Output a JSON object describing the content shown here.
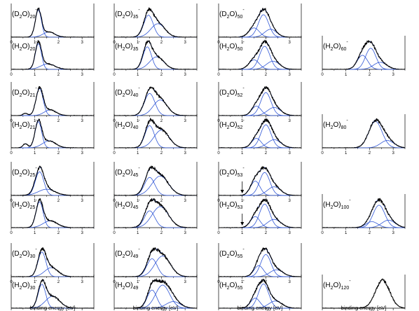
{
  "chart_data": {
    "type": "line",
    "x_range": [
      0,
      3.5
    ],
    "x_ticks": [
      "0",
      "1",
      "2",
      "3"
    ],
    "xlabel": "binding energy [eV]",
    "colors": {
      "spectrum": "#000000",
      "fit": "#2f56d6"
    },
    "columns": [
      {
        "panels": [
          {
            "label": [
              "(D",
              "2",
              "O)",
              "20",
              "-"
            ],
            "components": [
              {
                "c": 1.15,
                "w": 0.13,
                "a": 0.95
              },
              {
                "c": 1.6,
                "w": 0.25,
                "a": 0.18
              }
            ]
          },
          {
            "label": [
              "(H",
              "2",
              "O)",
              "20",
              "-"
            ],
            "components": [
              {
                "c": 1.15,
                "w": 0.13,
                "a": 0.95
              },
              {
                "c": 1.55,
                "w": 0.3,
                "a": 0.2
              }
            ]
          },
          {
            "label": [
              "(D",
              "2",
              "O)",
              "21",
              "-"
            ],
            "components": [
              {
                "c": 1.2,
                "w": 0.15,
                "a": 0.95
              },
              {
                "c": 1.65,
                "w": 0.25,
                "a": 0.2
              }
            ],
            "shoulder": {
              "c": 0.6,
              "w": 0.1,
              "a": 0.08
            }
          },
          {
            "label": [
              "(H",
              "2",
              "O)",
              "21",
              "-"
            ],
            "components": [
              {
                "c": 1.15,
                "w": 0.14,
                "a": 0.95
              },
              {
                "c": 1.6,
                "w": 0.28,
                "a": 0.25
              }
            ],
            "shoulder": {
              "c": 0.6,
              "w": 0.1,
              "a": 0.15
            }
          },
          {
            "label": [
              "(D",
              "2",
              "O)",
              "25",
              "-"
            ],
            "components": [
              {
                "c": 1.2,
                "w": 0.18,
                "a": 0.95
              },
              {
                "c": 1.5,
                "w": 0.35,
                "a": 0.25
              }
            ]
          },
          {
            "label": [
              "(H",
              "2",
              "O)",
              "25",
              "-"
            ],
            "components": [
              {
                "c": 1.2,
                "w": 0.15,
                "a": 0.95
              },
              {
                "c": 1.65,
                "w": 0.3,
                "a": 0.25
              }
            ]
          },
          {
            "label": [
              "(D",
              "2",
              "O)",
              "30",
              "-"
            ],
            "components": [
              {
                "c": 1.3,
                "w": 0.17,
                "a": 0.95
              },
              {
                "c": 1.7,
                "w": 0.28,
                "a": 0.35
              }
            ]
          },
          {
            "label": [
              "(H",
              "2",
              "O)",
              "30",
              "-"
            ],
            "components": [
              {
                "c": 1.3,
                "w": 0.16,
                "a": 0.9
              },
              {
                "c": 1.75,
                "w": 0.3,
                "a": 0.45
              }
            ]
          }
        ]
      },
      {
        "panels": [
          {
            "label": [
              "(D",
              "2",
              "O)",
              "35",
              "-"
            ],
            "components": [
              {
                "c": 1.45,
                "w": 0.2,
                "a": 0.9
              },
              {
                "c": 1.85,
                "w": 0.3,
                "a": 0.55
              }
            ]
          },
          {
            "label": [
              "(H",
              "2",
              "O)",
              "35",
              "-"
            ],
            "components": [
              {
                "c": 1.4,
                "w": 0.18,
                "a": 0.9
              },
              {
                "c": 1.8,
                "w": 0.3,
                "a": 0.5
              }
            ]
          },
          {
            "label": [
              "(D",
              "2",
              "O)",
              "40",
              "-"
            ],
            "components": [
              {
                "c": 1.5,
                "w": 0.22,
                "a": 0.85
              },
              {
                "c": 1.95,
                "w": 0.3,
                "a": 0.6
              }
            ]
          },
          {
            "label": [
              "(H",
              "2",
              "O)",
              "40",
              "-"
            ],
            "components": [
              {
                "c": 1.5,
                "w": 0.2,
                "a": 0.75
              },
              {
                "c": 2.0,
                "w": 0.32,
                "a": 0.6
              }
            ]
          },
          {
            "label": [
              "(D",
              "2",
              "O)",
              "45",
              "-"
            ],
            "components": [
              {
                "c": 1.5,
                "w": 0.22,
                "a": 0.65
              },
              {
                "c": 1.95,
                "w": 0.35,
                "a": 0.7
              }
            ]
          },
          {
            "label": [
              "(H",
              "2",
              "O)",
              "45",
              "-"
            ],
            "components": [
              {
                "c": 1.5,
                "w": 0.22,
                "a": 0.6
              },
              {
                "c": 1.95,
                "w": 0.35,
                "a": 0.75
              }
            ]
          },
          {
            "label": [
              "(D",
              "2",
              "O)",
              "49",
              "-"
            ],
            "components": [
              {
                "c": 1.6,
                "w": 0.22,
                "a": 0.65
              },
              {
                "c": 2.05,
                "w": 0.33,
                "a": 0.75
              }
            ]
          },
          {
            "label": [
              "(H",
              "2",
              "O)",
              "49",
              "-"
            ],
            "components": [
              {
                "c": 1.6,
                "w": 0.2,
                "a": 0.55
              },
              {
                "c": 2.05,
                "w": 0.3,
                "a": 0.7
              },
              {
                "c": 2.5,
                "w": 0.3,
                "a": 0.2
              }
            ]
          }
        ]
      },
      {
        "panels": [
          {
            "label": [
              "(D",
              "2",
              "O)",
              "50",
              "-"
            ],
            "components": [
              {
                "c": 1.5,
                "w": 0.22,
                "a": 0.35
              },
              {
                "c": 1.9,
                "w": 0.22,
                "a": 0.85
              },
              {
                "c": 2.2,
                "w": 0.25,
                "a": 0.3
              }
            ]
          },
          {
            "label": [
              "(H",
              "2",
              "O)",
              "50",
              "-"
            ],
            "components": [
              {
                "c": 1.5,
                "w": 0.22,
                "a": 0.35
              },
              {
                "c": 1.95,
                "w": 0.22,
                "a": 0.85
              },
              {
                "c": 2.3,
                "w": 0.28,
                "a": 0.3
              }
            ]
          },
          {
            "label": [
              "(D",
              "2",
              "O)",
              "52",
              "-"
            ],
            "components": [
              {
                "c": 1.6,
                "w": 0.2,
                "a": 0.35
              },
              {
                "c": 2.0,
                "w": 0.22,
                "a": 0.85
              },
              {
                "c": 2.35,
                "w": 0.28,
                "a": 0.3
              }
            ]
          },
          {
            "label": [
              "(H",
              "2",
              "O)",
              "52",
              "-"
            ],
            "components": [
              {
                "c": 1.6,
                "w": 0.2,
                "a": 0.35
              },
              {
                "c": 2.0,
                "w": 0.22,
                "a": 0.85
              },
              {
                "c": 2.35,
                "w": 0.28,
                "a": 0.3
              }
            ]
          },
          {
            "label": [
              "(D",
              "2",
              "O)",
              "53",
              "-"
            ],
            "components": [
              {
                "c": 1.55,
                "w": 0.2,
                "a": 0.5
              },
              {
                "c": 1.95,
                "w": 0.22,
                "a": 0.8
              },
              {
                "c": 2.35,
                "w": 0.28,
                "a": 0.3
              }
            ],
            "arrow": 1.0
          },
          {
            "label": [
              "(H",
              "2",
              "O)",
              "53",
              "-"
            ],
            "components": [
              {
                "c": 1.55,
                "w": 0.2,
                "a": 0.4
              },
              {
                "c": 1.95,
                "w": 0.22,
                "a": 0.85
              },
              {
                "c": 2.35,
                "w": 0.28,
                "a": 0.3
              }
            ],
            "arrow": 1.0
          },
          {
            "label": [
              "(D",
              "2",
              "O)",
              "55",
              "-"
            ],
            "components": [
              {
                "c": 1.7,
                "w": 0.2,
                "a": 0.4
              },
              {
                "c": 2.0,
                "w": 0.22,
                "a": 0.8
              },
              {
                "c": 2.45,
                "w": 0.28,
                "a": 0.25
              }
            ]
          },
          {
            "label": [
              "(H",
              "2",
              "O)",
              "55",
              "-"
            ],
            "components": [
              {
                "c": 1.55,
                "w": 0.2,
                "a": 0.35
              },
              {
                "c": 1.9,
                "w": 0.22,
                "a": 0.85
              },
              {
                "c": 2.4,
                "w": 0.28,
                "a": 0.25
              }
            ]
          }
        ]
      },
      {
        "panels": [
          {
            "slot": 1,
            "label": [
              "(H",
              "2",
              "O)",
              "60",
              "-"
            ],
            "components": [
              {
                "c": 1.7,
                "w": 0.22,
                "a": 0.5
              },
              {
                "c": 2.05,
                "w": 0.22,
                "a": 0.75
              },
              {
                "c": 2.45,
                "w": 0.28,
                "a": 0.25
              }
            ]
          },
          {
            "slot": 3,
            "label": [
              "(H",
              "2",
              "O)",
              "80",
              "-"
            ],
            "components": [
              {
                "c": 2.25,
                "w": 0.28,
                "a": 0.9
              },
              {
                "c": 2.75,
                "w": 0.28,
                "a": 0.25
              }
            ]
          },
          {
            "slot": 5,
            "label": [
              "(H",
              "2",
              "O)",
              "100",
              "-"
            ],
            "components": [
              {
                "c": 2.1,
                "w": 0.25,
                "a": 0.2
              },
              {
                "c": 2.4,
                "w": 0.25,
                "a": 0.75
              },
              {
                "c": 2.8,
                "w": 0.28,
                "a": 0.25
              }
            ]
          },
          {
            "slot": 7,
            "label": [
              "(H",
              "2",
              "O)",
              "120",
              "-"
            ],
            "components": [
              {
                "c": 2.55,
                "w": 0.3,
                "a": 0.9
              }
            ],
            "no_fit": true
          }
        ]
      }
    ]
  }
}
